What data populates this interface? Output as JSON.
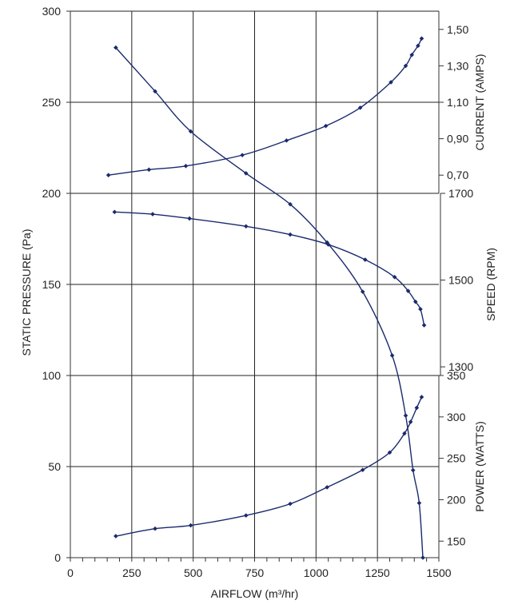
{
  "chart_data": {
    "type": "line",
    "title": "",
    "grid": true,
    "line_color": "#1a2a6c",
    "xlabel": "AIRFLOW (m³/hr)",
    "xlim": [
      0,
      1500
    ],
    "xticks": [
      "0",
      "250",
      "500",
      "750",
      "1000",
      "1250",
      "1500"
    ],
    "ylabel": "STATIC PRESSURE (Pa)",
    "ylim": [
      0,
      300
    ],
    "yticks": [
      "0",
      "50",
      "100",
      "150",
      "200",
      "250",
      "300"
    ],
    "secondary_axes": [
      {
        "label": "CURRENT (AMPS)",
        "ticks": [
          "0,70",
          "0,90",
          "1,10",
          "1,30",
          "1,50"
        ],
        "range": [
          0.6,
          1.6
        ],
        "pressure_span": [
          200,
          300
        ]
      },
      {
        "label": "SPEED (RPM)",
        "ticks": [
          "1300",
          "1500",
          "1700"
        ],
        "range": [
          1280,
          1700
        ],
        "pressure_span": [
          100,
          200
        ]
      },
      {
        "label": "POWER (WATTS)",
        "ticks": [
          "150",
          "200",
          "250",
          "300",
          "350"
        ],
        "range": [
          130,
          350
        ],
        "pressure_span": [
          0,
          100
        ]
      }
    ],
    "series": [
      {
        "axis": "pressure",
        "x": [
          185,
          345,
          490,
          715,
          895,
          1045,
          1190,
          1310,
          1365,
          1395,
          1420,
          1435
        ],
        "y": [
          280,
          256,
          234,
          211,
          194,
          173,
          146,
          111,
          78,
          48,
          30,
          0
        ]
      },
      {
        "axis": "current",
        "x": [
          155,
          320,
          470,
          700,
          880,
          1040,
          1180,
          1305,
          1365,
          1390,
          1415,
          1430
        ],
        "y": [
          0.7,
          0.73,
          0.75,
          0.81,
          0.89,
          0.97,
          1.07,
          1.21,
          1.3,
          1.36,
          1.41,
          1.45
        ]
      },
      {
        "axis": "speed",
        "x": [
          180,
          335,
          485,
          715,
          895,
          1050,
          1200,
          1320,
          1375,
          1405,
          1425,
          1440
        ],
        "y": [
          1657,
          1652,
          1642,
          1624,
          1605,
          1582,
          1547,
          1507,
          1475,
          1450,
          1433,
          1396
        ]
      },
      {
        "axis": "power",
        "x": [
          185,
          345,
          490,
          715,
          895,
          1045,
          1190,
          1300,
          1360,
          1385,
          1410,
          1430
        ],
        "y": [
          156,
          165,
          169,
          181,
          195,
          215,
          236,
          257,
          280,
          294,
          311,
          324
        ]
      }
    ]
  }
}
